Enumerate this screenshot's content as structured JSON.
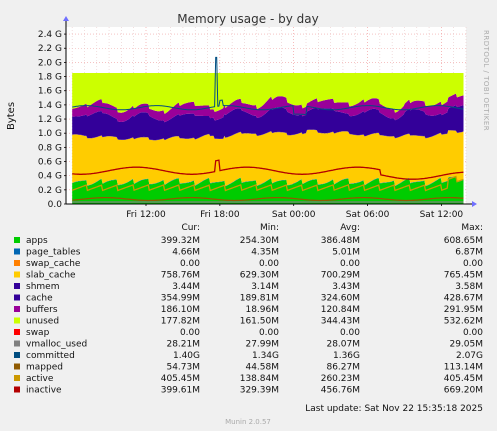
{
  "chart_data": {
    "type": "area",
    "title": "Memory usage - by day",
    "ylabel": "Bytes",
    "ylim": [
      0,
      2.5
    ],
    "y_unit": "G",
    "yticks": [
      0.0,
      0.2,
      0.4,
      0.6,
      0.8,
      1.0,
      1.2,
      1.4,
      1.6,
      1.8,
      2.0,
      2.2,
      2.4
    ],
    "ytick_labels": [
      "0.0",
      "0.2 G",
      "0.4 G",
      "0.6 G",
      "0.8 G",
      "1.0 G",
      "1.2 G",
      "1.4 G",
      "1.6 G",
      "1.8 G",
      "2.0 G",
      "2.2 G",
      "2.4 G"
    ],
    "xlim_hours": [
      5.5,
      38.0
    ],
    "xticks": [
      {
        "hour": 12,
        "label": "Fri 12:00"
      },
      {
        "hour": 18,
        "label": "Fri 18:00"
      },
      {
        "hour": 24,
        "label": "Sat 00:00"
      },
      {
        "hour": 30,
        "label": "Sat 06:00"
      },
      {
        "hour": 36,
        "label": "Sat 12:00"
      }
    ],
    "grid": true,
    "stacked_series": [
      {
        "name": "apps",
        "color": "#00cc00",
        "level": 0.33
      },
      {
        "name": "page_tables",
        "color": "#0066b3",
        "level": 0.005
      },
      {
        "name": "swap_cache",
        "color": "#ff8000",
        "level": 0.0
      },
      {
        "name": "slab_cache",
        "color": "#ffcc00",
        "level": 0.7
      },
      {
        "name": "shmem",
        "color": "#330099",
        "level": 0.003
      },
      {
        "name": "cache",
        "color": "#330099",
        "level": 0.32
      },
      {
        "name": "buffers",
        "color": "#990099",
        "level": 0.12
      },
      {
        "name": "unused",
        "color": "#ccff00",
        "level": 0.34
      },
      {
        "name": "swap",
        "color": "#ff0000",
        "level": 0.0
      }
    ],
    "line_series": [
      {
        "name": "vmalloc_used",
        "color": "#808080"
      },
      {
        "name": "committed",
        "color": "#004d80"
      },
      {
        "name": "mapped",
        "color": "#8f5a00"
      },
      {
        "name": "active",
        "color": "#cc9900"
      },
      {
        "name": "inactive",
        "color": "#b30000"
      }
    ],
    "total_top": 1.85,
    "committed_spike": {
      "hour": 17.7,
      "value": 2.07
    }
  },
  "legend": {
    "headers": {
      "cur": "Cur:",
      "min": "Min:",
      "avg": "Avg:",
      "max": "Max:"
    },
    "rows": [
      {
        "name": "apps",
        "color": "#00cc00",
        "cur": "399.32M",
        "min": "254.30M",
        "avg": "386.48M",
        "max": "608.65M"
      },
      {
        "name": "page_tables",
        "color": "#0066b3",
        "cur": "4.66M",
        "min": "4.35M",
        "avg": "5.01M",
        "max": "6.87M"
      },
      {
        "name": "swap_cache",
        "color": "#ff8000",
        "cur": "0.00",
        "min": "0.00",
        "avg": "0.00",
        "max": "0.00"
      },
      {
        "name": "slab_cache",
        "color": "#ffcc00",
        "cur": "758.76M",
        "min": "629.30M",
        "avg": "700.29M",
        "max": "765.45M"
      },
      {
        "name": "shmem",
        "color": "#330099",
        "cur": "3.44M",
        "min": "3.14M",
        "avg": "3.43M",
        "max": "3.58M"
      },
      {
        "name": "cache",
        "color": "#330099",
        "cur": "354.99M",
        "min": "189.81M",
        "avg": "324.60M",
        "max": "428.67M"
      },
      {
        "name": "buffers",
        "color": "#990099",
        "cur": "186.10M",
        "min": "18.96M",
        "avg": "120.84M",
        "max": "291.95M"
      },
      {
        "name": "unused",
        "color": "#ccff00",
        "cur": "177.82M",
        "min": "161.50M",
        "avg": "344.43M",
        "max": "532.62M"
      },
      {
        "name": "swap",
        "color": "#ff0000",
        "cur": "0.00",
        "min": "0.00",
        "avg": "0.00",
        "max": "0.00"
      },
      {
        "name": "vmalloc_used",
        "color": "#808080",
        "cur": "28.21M",
        "min": "27.99M",
        "avg": "28.07M",
        "max": "29.05M"
      },
      {
        "name": "committed",
        "color": "#004d80",
        "cur": "1.40G",
        "min": "1.34G",
        "avg": "1.36G",
        "max": "2.07G"
      },
      {
        "name": "mapped",
        "color": "#8f5a00",
        "cur": "54.73M",
        "min": "44.58M",
        "avg": "86.27M",
        "max": "113.14M"
      },
      {
        "name": "active",
        "color": "#cc9900",
        "cur": "405.45M",
        "min": "138.84M",
        "avg": "260.23M",
        "max": "405.45M"
      },
      {
        "name": "inactive",
        "color": "#b30000",
        "cur": "399.61M",
        "min": "329.39M",
        "avg": "456.76M",
        "max": "669.20M"
      }
    ]
  },
  "footer": {
    "last_update": "Last update: Sat Nov 22 15:35:18 2025",
    "version": "Munin 2.0.57"
  },
  "watermark": "RRDTOOL / TOBI OETIKER"
}
